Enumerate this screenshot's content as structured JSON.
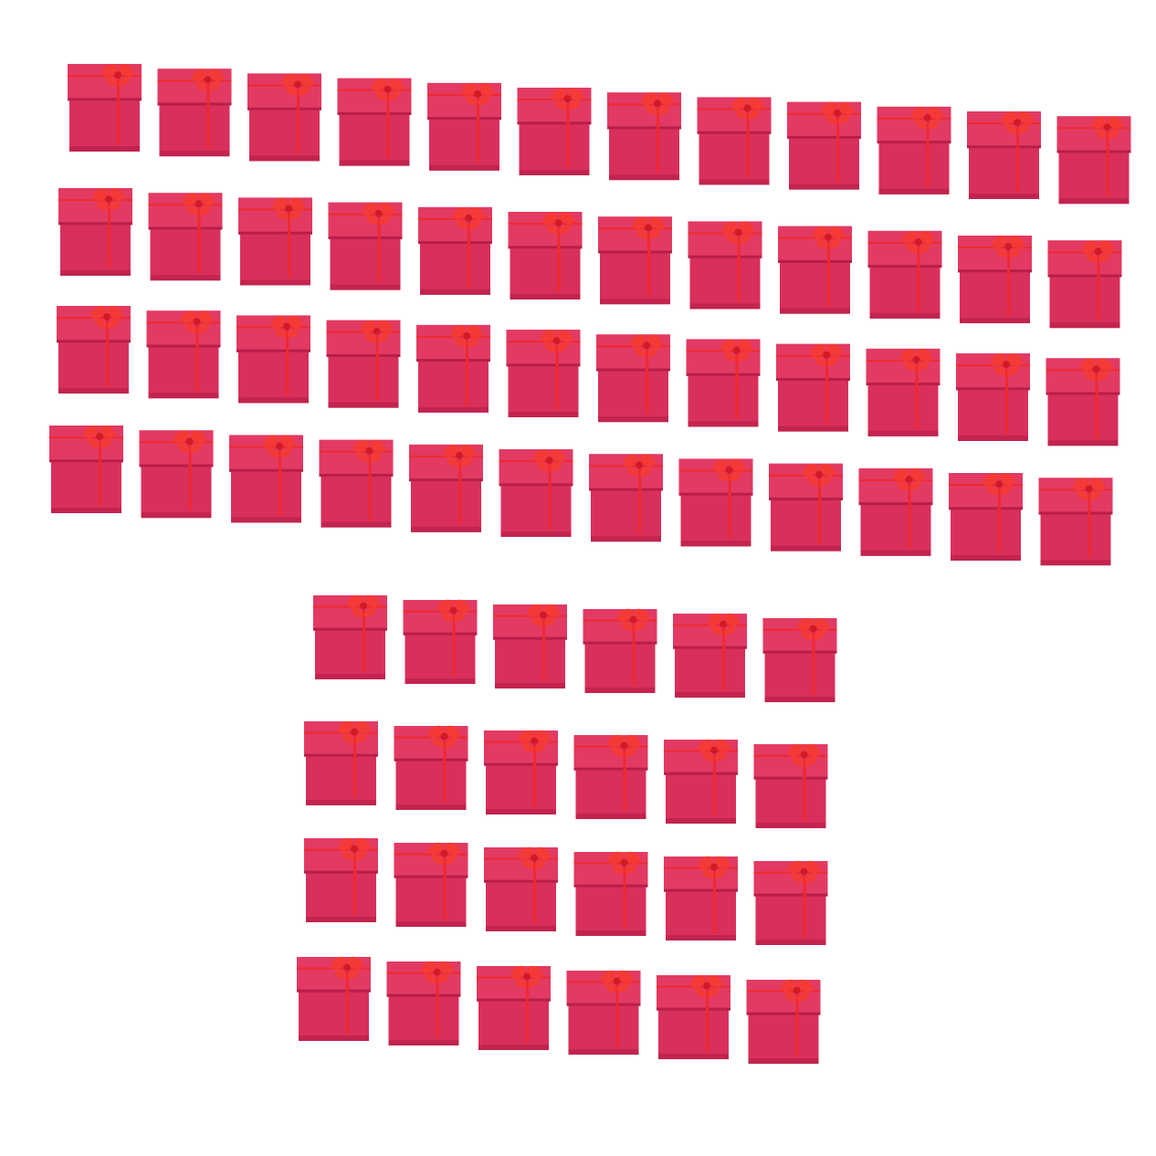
{
  "image": {
    "subject": "gift-box-grid",
    "background_color": "#ffffff",
    "box_colors": {
      "lid": "#e23a63",
      "lid_edge": "#b81e48",
      "base": "#d92f5b",
      "base_shadow": "#c2244f",
      "ribbon": "#f0292f",
      "bow": "#f33a36",
      "bow_center": "#d21a25"
    },
    "groups": [
      {
        "name": "top-block",
        "rows": 4,
        "columns": 12
      },
      {
        "name": "bottom-block",
        "rows": 4,
        "columns": 6
      }
    ],
    "total_boxes": 72
  }
}
